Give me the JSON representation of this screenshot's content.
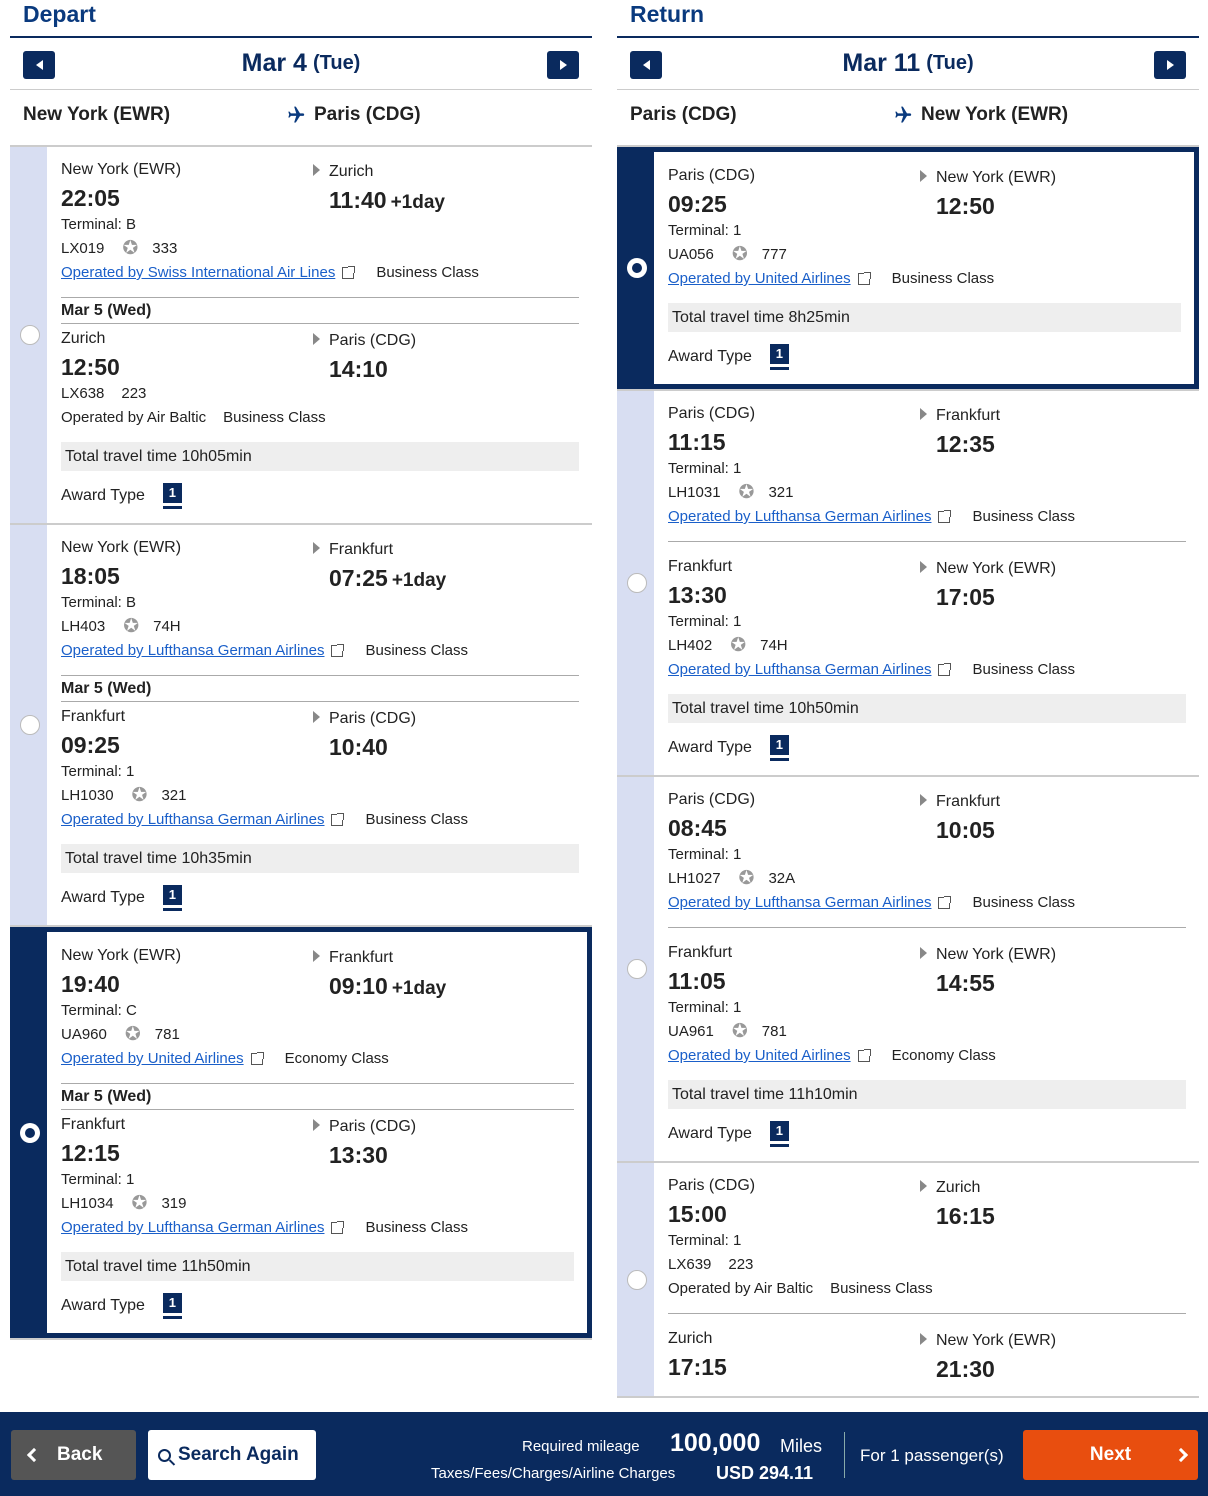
{
  "depart": {
    "title": "Depart",
    "date": "Mar 4",
    "dow": "(Tue)",
    "from": "New York (EWR)",
    "to": "Paris (CDG)",
    "options": [
      {
        "selected": false,
        "segments": [
          {
            "dep_city": "New York (EWR)",
            "dep_time": "22:05",
            "arr_city": "Zurich",
            "arr_time": "11:40",
            "plus": "+1day",
            "terminal": "Terminal: B",
            "flight": "LX019",
            "star": true,
            "equip": "333",
            "operator": "Operated by Swiss International Air Lines",
            "op_link": true,
            "cabin": "Business Class"
          },
          {
            "conn_date": "Mar 5 (Wed)",
            "dep_city": "Zurich",
            "dep_time": "12:50",
            "arr_city": "Paris (CDG)",
            "arr_time": "14:10",
            "plus": "",
            "terminal": "",
            "flight": "LX638",
            "star": false,
            "equip": "223",
            "operator": "Operated by Air Baltic",
            "op_link": false,
            "cabin": "Business Class"
          }
        ],
        "total": "Total travel time 10h05min",
        "award_label": "Award Type",
        "award_num": "1"
      },
      {
        "selected": false,
        "segments": [
          {
            "dep_city": "New York (EWR)",
            "dep_time": "18:05",
            "arr_city": "Frankfurt",
            "arr_time": "07:25",
            "plus": "+1day",
            "terminal": "Terminal: B",
            "flight": "LH403",
            "star": true,
            "equip": "74H",
            "operator": "Operated by Lufthansa German Airlines",
            "op_link": true,
            "cabin": "Business Class"
          },
          {
            "conn_date": "Mar 5 (Wed)",
            "dep_city": "Frankfurt",
            "dep_time": "09:25",
            "arr_city": "Paris (CDG)",
            "arr_time": "10:40",
            "plus": "",
            "terminal": "Terminal: 1",
            "flight": "LH1030",
            "star": true,
            "equip": "321",
            "operator": "Operated by Lufthansa German Airlines",
            "op_link": true,
            "cabin": "Business Class"
          }
        ],
        "total": "Total travel time 10h35min",
        "award_label": "Award Type",
        "award_num": "1"
      },
      {
        "selected": true,
        "segments": [
          {
            "dep_city": "New York (EWR)",
            "dep_time": "19:40",
            "arr_city": "Frankfurt",
            "arr_time": "09:10",
            "plus": "+1day",
            "terminal": "Terminal: C",
            "flight": "UA960",
            "star": true,
            "equip": "781",
            "operator": "Operated by United Airlines",
            "op_link": true,
            "cabin": "Economy Class"
          },
          {
            "conn_date": "Mar 5 (Wed)",
            "dep_city": "Frankfurt",
            "dep_time": "12:15",
            "arr_city": "Paris (CDG)",
            "arr_time": "13:30",
            "plus": "",
            "terminal": "Terminal: 1",
            "flight": "LH1034",
            "star": true,
            "equip": "319",
            "operator": "Operated by Lufthansa German Airlines",
            "op_link": true,
            "cabin": "Business Class"
          }
        ],
        "total": "Total travel time 11h50min",
        "award_label": "Award Type",
        "award_num": "1"
      }
    ]
  },
  "return": {
    "title": "Return",
    "date": "Mar 11",
    "dow": "(Tue)",
    "from": "Paris (CDG)",
    "to": "New York (EWR)",
    "options": [
      {
        "selected": true,
        "segments": [
          {
            "dep_city": "Paris (CDG)",
            "dep_time": "09:25",
            "arr_city": "New York (EWR)",
            "arr_time": "12:50",
            "plus": "",
            "terminal": "Terminal: 1",
            "flight": "UA056",
            "star": true,
            "equip": "777",
            "operator": "Operated by United Airlines",
            "op_link": true,
            "cabin": "Business Class"
          }
        ],
        "total": "Total travel time 8h25min",
        "award_label": "Award Type",
        "award_num": "1"
      },
      {
        "selected": false,
        "segments": [
          {
            "dep_city": "Paris (CDG)",
            "dep_time": "11:15",
            "arr_city": "Frankfurt",
            "arr_time": "12:35",
            "plus": "",
            "terminal": "Terminal: 1",
            "flight": "LH1031",
            "star": true,
            "equip": "321",
            "operator": "Operated by Lufthansa German Airlines",
            "op_link": true,
            "cabin": "Business Class"
          },
          {
            "dep_city": "Frankfurt",
            "dep_time": "13:30",
            "arr_city": "New York (EWR)",
            "arr_time": "17:05",
            "plus": "",
            "terminal": "Terminal: 1",
            "flight": "LH402",
            "star": true,
            "equip": "74H",
            "operator": "Operated by Lufthansa German Airlines",
            "op_link": true,
            "cabin": "Business Class"
          }
        ],
        "total": "Total travel time 10h50min",
        "award_label": "Award Type",
        "award_num": "1"
      },
      {
        "selected": false,
        "segments": [
          {
            "dep_city": "Paris (CDG)",
            "dep_time": "08:45",
            "arr_city": "Frankfurt",
            "arr_time": "10:05",
            "plus": "",
            "terminal": "Terminal: 1",
            "flight": "LH1027",
            "star": true,
            "equip": "32A",
            "operator": "Operated by Lufthansa German Airlines",
            "op_link": true,
            "cabin": "Business Class"
          },
          {
            "dep_city": "Frankfurt",
            "dep_time": "11:05",
            "arr_city": "New York (EWR)",
            "arr_time": "14:55",
            "plus": "",
            "terminal": "Terminal: 1",
            "flight": "UA961",
            "star": true,
            "equip": "781",
            "operator": "Operated by United Airlines",
            "op_link": true,
            "cabin": "Economy Class"
          }
        ],
        "total": "Total travel time 11h10min",
        "award_label": "Award Type",
        "award_num": "1"
      },
      {
        "selected": false,
        "segments": [
          {
            "dep_city": "Paris (CDG)",
            "dep_time": "15:00",
            "arr_city": "Zurich",
            "arr_time": "16:15",
            "plus": "",
            "terminal": "Terminal: 1",
            "flight": "LX639",
            "star": false,
            "equip": "223",
            "operator": "Operated by Air Baltic",
            "op_link": false,
            "cabin": "Business Class"
          },
          {
            "dep_city": "Zurich",
            "dep_time": "17:15",
            "arr_city": "New York (EWR)",
            "arr_time": "21:30",
            "plus": "",
            "terminal": "",
            "flight": "",
            "star": false,
            "equip": "",
            "operator": "",
            "op_link": false,
            "cabin": ""
          }
        ],
        "total": "",
        "award_label": "",
        "award_num": ""
      }
    ]
  },
  "footer": {
    "back": "Back",
    "search_again": "Search Again",
    "required_label": "Required mileage",
    "required_value": "100,000",
    "required_unit": "Miles",
    "taxes_label": "Taxes/Fees/Charges/Airline Charges",
    "taxes_value": "USD  294.11",
    "passengers": "For 1 passenger(s)",
    "next": "Next"
  }
}
